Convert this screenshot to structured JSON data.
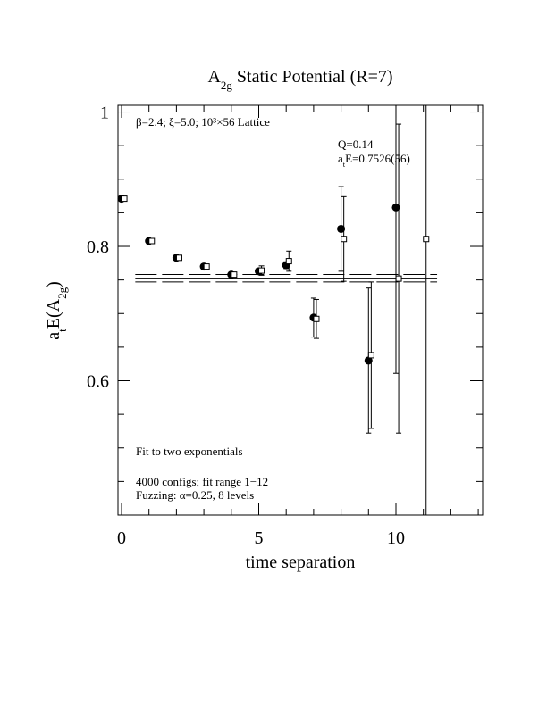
{
  "chart_data": {
    "type": "scatter",
    "title": [
      {
        "text": "A"
      },
      {
        "text": "2g",
        "sub": true
      },
      {
        "text": " Static Potential (R=7)"
      }
    ],
    "x_label": "time separation",
    "y_label": [
      {
        "text": "a"
      },
      {
        "text": "t",
        "sub": true
      },
      {
        "text": "E(A"
      },
      {
        "text": "2g",
        "sub": true
      },
      {
        "text": ")"
      }
    ],
    "annotations": {
      "lattice": "β=2.4; ξ=5.0; 10³×56 Lattice",
      "q": "Q=0.14",
      "energy": [
        {
          "text": "a"
        },
        {
          "text": "t",
          "sub": true
        },
        {
          "text": "E=0.7526(56)"
        }
      ],
      "fit": "Fit to two exponentials",
      "configs": "4000 configs; fit range 1−12",
      "fuzzing": "Fuzzing: α=0.25, 8 levels"
    },
    "xlim": [
      -0.13,
      13.16
    ],
    "ylim": [
      0.4,
      1.01
    ],
    "xticks": [
      0,
      5,
      10
    ],
    "xminor_ticks": [
      1,
      2,
      3,
      4,
      6,
      7,
      8,
      9,
      11,
      12,
      13
    ],
    "yticks": [
      0.6,
      0.8,
      1
    ],
    "yminor_ticks": [
      0.45,
      0.5,
      0.55,
      0.65,
      0.7,
      0.75,
      0.85,
      0.9,
      0.95
    ],
    "fit_line": {
      "value": 0.7526,
      "error": 0.0056,
      "x_range": [
        0.5,
        11.5
      ]
    },
    "series": [
      {
        "marker": "circle",
        "color": "#000000",
        "x": [
          0,
          1,
          2,
          3,
          4,
          5,
          6,
          7,
          8,
          9,
          10
        ],
        "values": [
          0.871,
          0.808,
          0.783,
          0.77,
          0.758,
          0.763,
          0.772,
          0.694,
          0.826,
          0.63,
          0.858
        ],
        "errors": [
          0.002,
          0.002,
          0.002,
          0.002,
          0.002,
          0.004,
          0.005,
          0.029,
          0.063,
          0.108,
          0.247
        ]
      },
      {
        "marker": "square",
        "color": "#000000",
        "x": [
          0.1,
          1.1,
          2.1,
          3.1,
          4.1,
          5.1,
          6.1,
          7.1,
          8.1,
          9.1,
          10.1,
          11.1
        ],
        "values": [
          0.871,
          0.808,
          0.783,
          0.77,
          0.758,
          0.764,
          0.778,
          0.692,
          0.811,
          0.638,
          0.752,
          0.811
        ],
        "errors": [
          0.002,
          0.002,
          0.002,
          0.002,
          0.002,
          0.007,
          0.015,
          0.029,
          0.063,
          0.109,
          0.23,
          0.45
        ]
      }
    ]
  }
}
